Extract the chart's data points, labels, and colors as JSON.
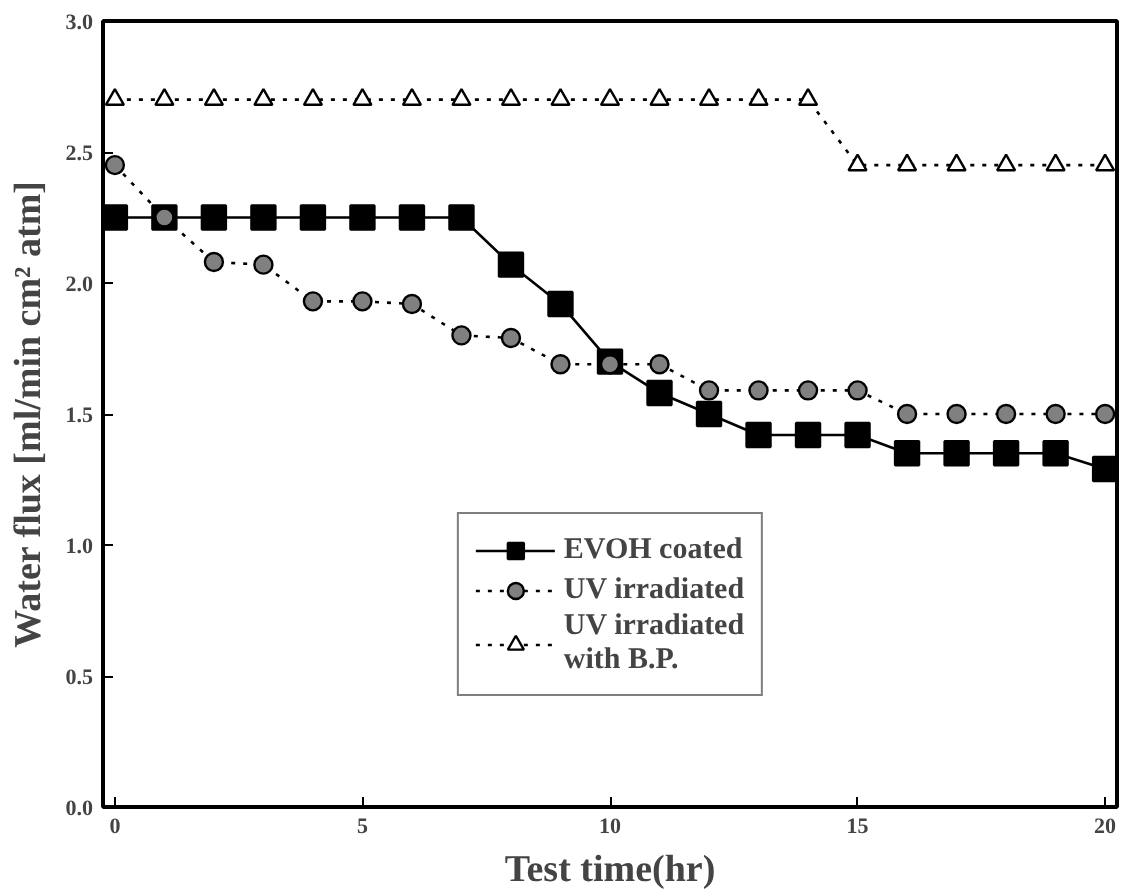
{
  "chart_data": {
    "type": "line",
    "xlabel": "Test time(hr)",
    "ylabel": "Water flux [ml/min cm² atm]",
    "x": [
      0,
      1,
      2,
      3,
      4,
      5,
      6,
      7,
      8,
      9,
      10,
      11,
      12,
      13,
      14,
      15,
      16,
      17,
      18,
      19,
      20
    ],
    "series": [
      {
        "name": "EVOH coated",
        "color": "#000000",
        "marker": "square",
        "line_style": "solid",
        "values": [
          2.25,
          2.25,
          2.25,
          2.25,
          2.25,
          2.25,
          2.25,
          2.25,
          2.07,
          1.92,
          1.7,
          1.58,
          1.5,
          1.42,
          1.42,
          1.42,
          1.35,
          1.35,
          1.35,
          1.35,
          1.29
        ]
      },
      {
        "name": "UV irradiated",
        "color": "#808080",
        "marker": "circle",
        "line_style": "dotted",
        "values": [
          2.45,
          2.25,
          2.08,
          2.07,
          1.93,
          1.93,
          1.92,
          1.8,
          1.79,
          1.69,
          1.69,
          1.69,
          1.59,
          1.59,
          1.59,
          1.59,
          1.5,
          1.5,
          1.5,
          1.5,
          1.5
        ]
      },
      {
        "name": "UV irradiated\nwith B.P.",
        "color": "#ffffff",
        "marker": "triangle",
        "line_style": "dotted",
        "values": [
          2.7,
          2.7,
          2.7,
          2.7,
          2.7,
          2.7,
          2.7,
          2.7,
          2.7,
          2.7,
          2.7,
          2.7,
          2.7,
          2.7,
          2.7,
          2.45,
          2.45,
          2.45,
          2.45,
          2.45,
          2.45
        ]
      }
    ],
    "xlim": [
      0,
      20
    ],
    "ylim": [
      0,
      3.0
    ],
    "xticks": [
      0,
      5,
      10,
      15,
      20
    ],
    "yticks": [
      {
        "value": 0,
        "label": "0.0"
      },
      {
        "value": 0.5,
        "label": "0.5"
      },
      {
        "value": 1,
        "label": "1.0"
      },
      {
        "value": 1.5,
        "label": "1.5"
      },
      {
        "value": 2,
        "label": "2.0"
      },
      {
        "value": 2.5,
        "label": "2.5"
      },
      {
        "value": 3,
        "label": "3.0"
      }
    ],
    "grid": false,
    "legend": "bottom"
  }
}
